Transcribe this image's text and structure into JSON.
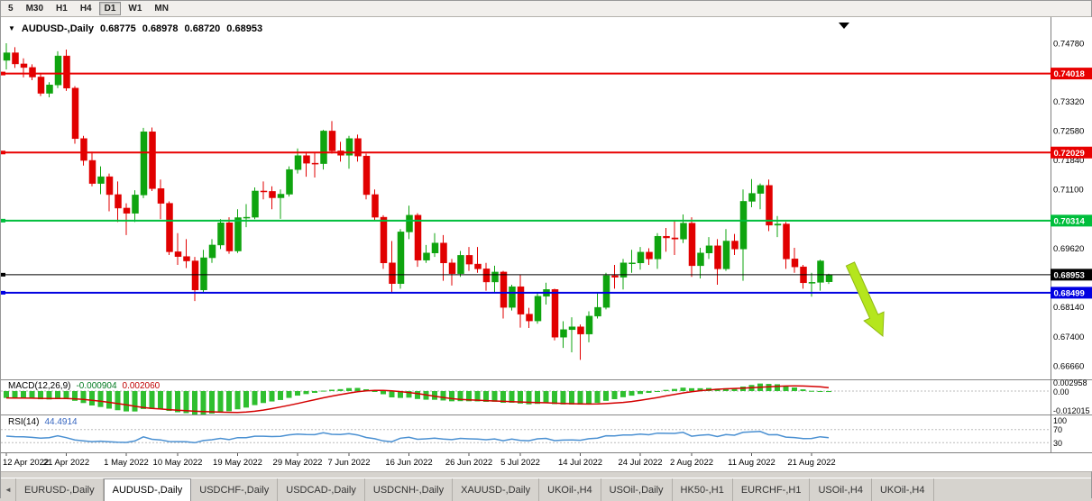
{
  "toolbar": {
    "periods": [
      {
        "label": "5",
        "active": false
      },
      {
        "label": "M30",
        "active": false
      },
      {
        "label": "H1",
        "active": false
      },
      {
        "label": "H4",
        "active": false
      },
      {
        "label": "D1",
        "active": true
      },
      {
        "label": "W1",
        "active": false
      },
      {
        "label": "MN",
        "active": false
      }
    ]
  },
  "header": {
    "dropdown_icon": "▼",
    "symbol": "AUDUSD-,Daily",
    "open": "0.68775",
    "high": "0.68978",
    "low": "0.68720",
    "close": "0.68953"
  },
  "colors": {
    "bull": "#0FA40F",
    "bear": "#E10000",
    "macd_hist": "#2FBF2F",
    "macd_signal": "#D40000",
    "rsi_line": "#4A90D2"
  },
  "chart_data": {
    "type": "candlestick",
    "title": "AUDUSD-,Daily",
    "timeframe": "Daily",
    "ylim": [
      0.6666,
      0.7478
    ],
    "candles_ohlc": [
      [
        0.7435,
        0.7478,
        0.7412,
        0.7454
      ],
      [
        0.7454,
        0.7468,
        0.7416,
        0.7426
      ],
      [
        0.7426,
        0.744,
        0.7392,
        0.7417
      ],
      [
        0.7417,
        0.7425,
        0.7385,
        0.7393
      ],
      [
        0.7393,
        0.7402,
        0.7345,
        0.7352
      ],
      [
        0.7352,
        0.738,
        0.7342,
        0.7373
      ],
      [
        0.7373,
        0.7458,
        0.7365,
        0.7446
      ],
      [
        0.7446,
        0.7462,
        0.7358,
        0.7365
      ],
      [
        0.7365,
        0.737,
        0.7225,
        0.7238
      ],
      [
        0.7238,
        0.7245,
        0.717,
        0.7183
      ],
      [
        0.7183,
        0.7205,
        0.7118,
        0.7125
      ],
      [
        0.7125,
        0.7168,
        0.7098,
        0.7142
      ],
      [
        0.7142,
        0.715,
        0.7055,
        0.7097
      ],
      [
        0.7097,
        0.713,
        0.7028,
        0.7063
      ],
      [
        0.7063,
        0.7075,
        0.6995,
        0.705
      ],
      [
        0.705,
        0.7108,
        0.7028,
        0.7096
      ],
      [
        0.7096,
        0.7265,
        0.7088,
        0.7255
      ],
      [
        0.7255,
        0.7266,
        0.7106,
        0.7112
      ],
      [
        0.7112,
        0.7135,
        0.7035,
        0.7075
      ],
      [
        0.7075,
        0.708,
        0.6945,
        0.6953
      ],
      [
        0.6953,
        0.7,
        0.692,
        0.6941
      ],
      [
        0.6941,
        0.6985,
        0.6912,
        0.693
      ],
      [
        0.693,
        0.694,
        0.6829,
        0.6857
      ],
      [
        0.6857,
        0.6958,
        0.685,
        0.6938
      ],
      [
        0.6938,
        0.6985,
        0.6925,
        0.697
      ],
      [
        0.697,
        0.7035,
        0.696,
        0.7026
      ],
      [
        0.7026,
        0.704,
        0.6948,
        0.6955
      ],
      [
        0.6955,
        0.706,
        0.695,
        0.7039
      ],
      [
        0.7039,
        0.7073,
        0.7015,
        0.704
      ],
      [
        0.704,
        0.7115,
        0.7035,
        0.7106
      ],
      [
        0.7106,
        0.713,
        0.7085,
        0.7105
      ],
      [
        0.7105,
        0.7118,
        0.706,
        0.7089
      ],
      [
        0.7089,
        0.711,
        0.7036,
        0.7098
      ],
      [
        0.7098,
        0.7168,
        0.7092,
        0.716
      ],
      [
        0.716,
        0.7213,
        0.715,
        0.7195
      ],
      [
        0.7195,
        0.7205,
        0.7142,
        0.7176
      ],
      [
        0.7176,
        0.7202,
        0.714,
        0.7175
      ],
      [
        0.7175,
        0.726,
        0.716,
        0.7257
      ],
      [
        0.7257,
        0.7282,
        0.72,
        0.7207
      ],
      [
        0.7207,
        0.723,
        0.718,
        0.7196
      ],
      [
        0.7196,
        0.7245,
        0.7162,
        0.7238
      ],
      [
        0.7238,
        0.7248,
        0.718,
        0.7194
      ],
      [
        0.7194,
        0.72,
        0.7085,
        0.7097
      ],
      [
        0.7097,
        0.711,
        0.703,
        0.704
      ],
      [
        0.704,
        0.7045,
        0.691,
        0.6925
      ],
      [
        0.6925,
        0.698,
        0.685,
        0.6873
      ],
      [
        0.6873,
        0.701,
        0.686,
        0.7003
      ],
      [
        0.7003,
        0.7069,
        0.6985,
        0.7045
      ],
      [
        0.7045,
        0.705,
        0.6915,
        0.6932
      ],
      [
        0.6932,
        0.697,
        0.6925,
        0.695
      ],
      [
        0.695,
        0.7,
        0.694,
        0.6975
      ],
      [
        0.6975,
        0.6995,
        0.688,
        0.6925
      ],
      [
        0.6925,
        0.6935,
        0.6868,
        0.6898
      ],
      [
        0.6898,
        0.6955,
        0.689,
        0.6944
      ],
      [
        0.6944,
        0.6965,
        0.6905,
        0.6922
      ],
      [
        0.6922,
        0.6965,
        0.69,
        0.691
      ],
      [
        0.691,
        0.6925,
        0.6855,
        0.6877
      ],
      [
        0.6877,
        0.6918,
        0.685,
        0.6902
      ],
      [
        0.6902,
        0.6905,
        0.6785,
        0.6813
      ],
      [
        0.6813,
        0.687,
        0.6805,
        0.6865
      ],
      [
        0.6865,
        0.6895,
        0.6762,
        0.6796
      ],
      [
        0.6796,
        0.6812,
        0.6761,
        0.6779
      ],
      [
        0.6779,
        0.685,
        0.6772,
        0.6841
      ],
      [
        0.6841,
        0.6875,
        0.682,
        0.6858
      ],
      [
        0.6858,
        0.686,
        0.673,
        0.6738
      ],
      [
        0.6738,
        0.6778,
        0.6711,
        0.6757
      ],
      [
        0.6757,
        0.6788,
        0.67,
        0.6764
      ],
      [
        0.6764,
        0.677,
        0.6681,
        0.6746
      ],
      [
        0.6746,
        0.6803,
        0.6725,
        0.6791
      ],
      [
        0.6791,
        0.685,
        0.6785,
        0.6813
      ],
      [
        0.6813,
        0.69,
        0.6808,
        0.6893
      ],
      [
        0.6893,
        0.692,
        0.686,
        0.6889
      ],
      [
        0.6889,
        0.6935,
        0.6858,
        0.6925
      ],
      [
        0.6925,
        0.6958,
        0.69,
        0.6925
      ],
      [
        0.6925,
        0.6965,
        0.6908,
        0.6952
      ],
      [
        0.6952,
        0.6962,
        0.692,
        0.6935
      ],
      [
        0.6935,
        0.7,
        0.691,
        0.6992
      ],
      [
        0.6992,
        0.7013,
        0.6953,
        0.6988
      ],
      [
        0.6988,
        0.7033,
        0.6945,
        0.6985
      ],
      [
        0.6985,
        0.7047,
        0.6975,
        0.7025
      ],
      [
        0.7025,
        0.704,
        0.689,
        0.6918
      ],
      [
        0.6918,
        0.6963,
        0.6886,
        0.695
      ],
      [
        0.695,
        0.699,
        0.6935,
        0.6968
      ],
      [
        0.6968,
        0.6985,
        0.687,
        0.691
      ],
      [
        0.691,
        0.701,
        0.6905,
        0.698
      ],
      [
        0.698,
        0.6998,
        0.6945,
        0.696
      ],
      [
        0.696,
        0.711,
        0.688,
        0.708
      ],
      [
        0.708,
        0.7136,
        0.7065,
        0.71
      ],
      [
        0.71,
        0.7125,
        0.706,
        0.712
      ],
      [
        0.712,
        0.7135,
        0.7005,
        0.702
      ],
      [
        0.702,
        0.7043,
        0.699,
        0.7023
      ],
      [
        0.7023,
        0.7028,
        0.691,
        0.6935
      ],
      [
        0.6935,
        0.6963,
        0.69,
        0.6915
      ],
      [
        0.6915,
        0.692,
        0.686,
        0.6875
      ],
      [
        0.6875,
        0.69,
        0.684,
        0.6876
      ],
      [
        0.6876,
        0.6933,
        0.6855,
        0.693
      ],
      [
        0.68775,
        0.68978,
        0.6872,
        0.68953
      ]
    ],
    "x_ticks": [
      {
        "label": "12 Apr 2022",
        "index": 0
      },
      {
        "label": "21 Apr 2022",
        "index": 7
      },
      {
        "label": "1 May 2022",
        "index": 14
      },
      {
        "label": "10 May 2022",
        "index": 20
      },
      {
        "label": "19 May 2022",
        "index": 27
      },
      {
        "label": "29 May 2022",
        "index": 34
      },
      {
        "label": "7 Jun 2022",
        "index": 40
      },
      {
        "label": "16 Jun 2022",
        "index": 47
      },
      {
        "label": "26 Jun 2022",
        "index": 54
      },
      {
        "label": "5 Jul 2022",
        "index": 60
      },
      {
        "label": "14 Jul 2022",
        "index": 67
      },
      {
        "label": "24 Jul 2022",
        "index": 74
      },
      {
        "label": "2 Aug 2022",
        "index": 80
      },
      {
        "label": "11 Aug 2022",
        "index": 87
      },
      {
        "label": "21 Aug 2022",
        "index": 94
      }
    ],
    "h_lines": [
      {
        "price": 0.74018,
        "label": "0.74018",
        "color": "#E80000",
        "width": 2
      },
      {
        "price": 0.72029,
        "label": "0.72029",
        "color": "#E80000",
        "width": 2
      },
      {
        "price": 0.70314,
        "label": "0.70314",
        "color": "#00BE3C",
        "width": 2
      },
      {
        "price": 0.68953,
        "label": "0.68953",
        "color": "#000000",
        "width": 1
      },
      {
        "price": 0.68499,
        "label": "0.68499",
        "color": "#0000E1",
        "width": 2
      }
    ],
    "y_axis_labels": [
      "0.74780",
      "0.73320",
      "0.72580",
      "0.71840",
      "0.71100",
      "0.69620",
      "0.68140",
      "0.67400",
      "0.66660"
    ],
    "indicators": {
      "macd": {
        "name": "MACD(12,26,9)",
        "value_main": "-0.000904",
        "value_signal": "0.002060",
        "axis_labels": [
          "0.002958",
          "0.00",
          "-0.012015"
        ]
      },
      "rsi": {
        "name": "RSI(14)",
        "value": "44.4914",
        "levels": [
          70,
          30
        ],
        "axis_labels": [
          "100",
          "70",
          "30"
        ]
      }
    },
    "annotations": [
      {
        "type": "down-arrow",
        "color": "#B5E61D",
        "from": [
          942,
          274
        ],
        "to": [
          978,
          354
        ]
      }
    ]
  },
  "tabs": {
    "items": [
      {
        "label": "EURUSD-,Daily",
        "active": false
      },
      {
        "label": "AUDUSD-,Daily",
        "active": true
      },
      {
        "label": "USDCHF-,Daily",
        "active": false
      },
      {
        "label": "USDCAD-,Daily",
        "active": false
      },
      {
        "label": "USDCNH-,Daily",
        "active": false
      },
      {
        "label": "XAUUSD-,Daily",
        "active": false
      },
      {
        "label": "UKOil-,H4",
        "active": false
      },
      {
        "label": "USOil-,Daily",
        "active": false
      },
      {
        "label": "HK50-,H1",
        "active": false
      },
      {
        "label": "EURCHF-,H1",
        "active": false
      },
      {
        "label": "USOil-,H4",
        "active": false
      },
      {
        "label": "UKOil-,H4",
        "active": false
      }
    ],
    "scroll_left_icon": "◄"
  }
}
